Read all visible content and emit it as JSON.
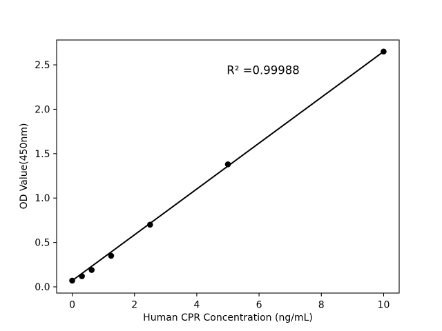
{
  "chart_data": {
    "type": "scatter",
    "title": "",
    "xlabel": "Human CPR Concentration (ng/mL)",
    "ylabel": "OD Value(450nm)",
    "annotation": "R² =0.99988",
    "r_squared": 0.99988,
    "x": [
      0,
      0.3125,
      0.625,
      1.25,
      2.5,
      5,
      10
    ],
    "y": [
      0.07,
      0.12,
      0.19,
      0.35,
      0.7,
      1.38,
      2.65
    ],
    "fit_line": {
      "x": [
        0,
        10
      ],
      "y": [
        0.07,
        2.65
      ]
    },
    "xlim": [
      -0.5,
      10.5
    ],
    "ylim": [
      -0.07,
      2.78
    ],
    "x_ticks": [
      0,
      2,
      4,
      6,
      8,
      10
    ],
    "x_tick_labels": [
      "0",
      "2",
      "4",
      "6",
      "8",
      "10"
    ],
    "y_ticks": [
      0.0,
      0.5,
      1.0,
      1.5,
      2.0,
      2.5
    ],
    "y_tick_labels": [
      "0.0",
      "0.5",
      "1.0",
      "1.5",
      "2.0",
      "2.5"
    ],
    "grid": false,
    "legend": null,
    "marker_color": "#000000",
    "line_color": "#000000",
    "axis_color": "#000000",
    "background_color": "#ffffff"
  }
}
